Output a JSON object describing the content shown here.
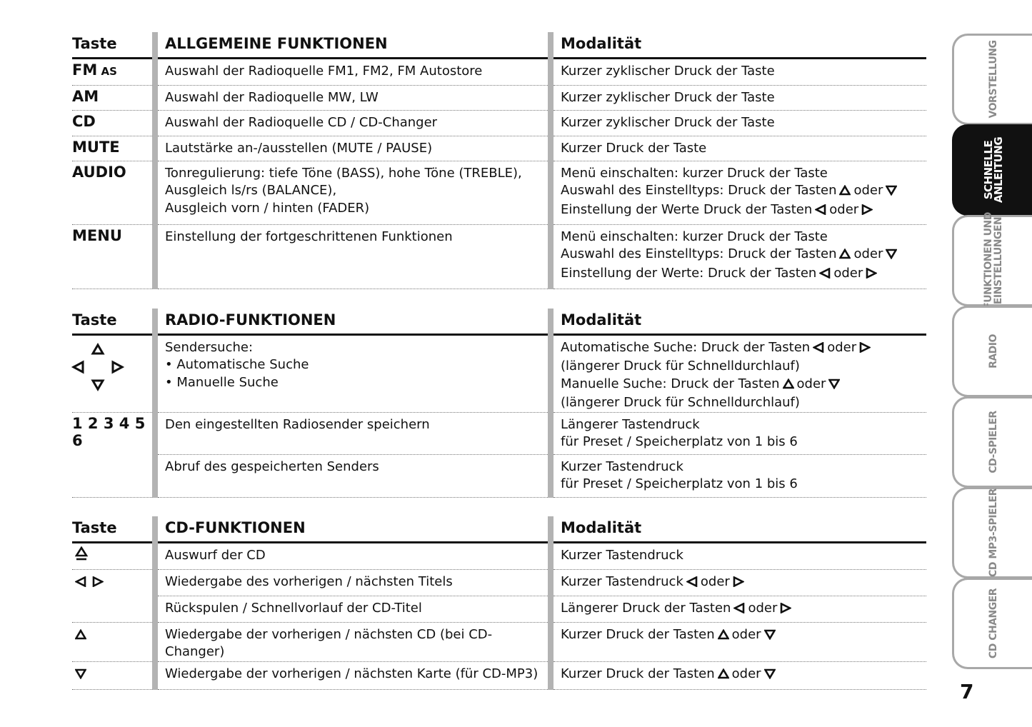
{
  "sections": [
    {
      "header": {
        "key": "Taste",
        "func": "ALLGEMEINE FUNKTIONEN",
        "mod": "Modalität"
      },
      "rows": [
        {
          "key": [
            {
              "t": "FM"
            },
            {
              "t": " AS",
              "small": true
            }
          ],
          "func": [
            [
              "Auswahl der Radioquelle FM1, FM2, FM Autostore"
            ]
          ],
          "mod": [
            [
              "Kurzer zyklischer Druck der Taste"
            ]
          ]
        },
        {
          "key": [
            {
              "t": "AM"
            }
          ],
          "func": [
            [
              "Auswahl der Radioquelle MW, LW"
            ]
          ],
          "mod": [
            [
              "Kurzer zyklischer Druck der Taste"
            ]
          ]
        },
        {
          "key": [
            {
              "t": "CD"
            }
          ],
          "func": [
            [
              "Auswahl der Radioquelle CD / CD-Changer"
            ]
          ],
          "mod": [
            [
              "Kurzer zyklischer Druck der Taste"
            ]
          ]
        },
        {
          "key": [
            {
              "t": "MUTE"
            }
          ],
          "func": [
            [
              "Lautstärke an-/ausstellen (MUTE / PAUSE)"
            ]
          ],
          "mod": [
            [
              "Kurzer Druck der Taste"
            ]
          ]
        },
        {
          "key": [
            {
              "t": "AUDIO"
            }
          ],
          "func": [
            [
              "Tonregulierung: tiefe Töne (BASS), hohe Töne (TREBLE),"
            ],
            [
              "Ausgleich ls/rs (BALANCE),"
            ],
            [
              "Ausgleich vorn / hinten (FADER)"
            ]
          ],
          "mod": [
            [
              "Menü einschalten: kurzer Druck der Taste"
            ],
            [
              "Auswahl des Einstelltyps: Druck der Tasten",
              {
                "icon": "up"
              },
              "oder",
              {
                "icon": "down"
              }
            ],
            [
              "Einstellung der Werte Druck der Tasten",
              {
                "icon": "left"
              },
              "oder",
              {
                "icon": "right"
              }
            ]
          ]
        },
        {
          "key": [
            {
              "t": "MENU"
            }
          ],
          "func": [
            [
              "Einstellung der fortgeschrittenen Funktionen"
            ]
          ],
          "mod": [
            [
              "Menü einschalten: kurzer Druck der Taste"
            ],
            [
              "Auswahl des Einstelltyps: Druck der Tasten",
              {
                "icon": "up"
              },
              "oder",
              {
                "icon": "down"
              }
            ],
            [
              "Einstellung der Werte: Druck der Tasten",
              {
                "icon": "left"
              },
              "oder",
              {
                "icon": "right"
              }
            ]
          ]
        }
      ]
    },
    {
      "header": {
        "key": "Taste",
        "func": "RADIO-FUNKTIONEN",
        "mod": "Modalität"
      },
      "rows": [
        {
          "key": [
            {
              "icon": "dpad"
            }
          ],
          "func": [
            [
              "Sendersuche:"
            ],
            [
              "• Automatische Suche"
            ],
            [
              "• Manuelle Suche"
            ]
          ],
          "mod": [
            [
              "Automatische Suche: Druck der Tasten",
              {
                "icon": "left"
              },
              "oder",
              {
                "icon": "right"
              }
            ],
            [
              "(längerer Druck für Schnelldurchlauf)"
            ],
            [
              "Manuelle Suche: Druck der Tasten",
              {
                "icon": "up"
              },
              "oder",
              {
                "icon": "down"
              }
            ],
            [
              "(längerer Druck für Schnelldurchlauf)"
            ]
          ]
        },
        {
          "key": [
            {
              "t": "1 2 3 4 5 6"
            }
          ],
          "span": 2,
          "func": [
            [
              "Den eingestellten Radiosender speichern"
            ]
          ],
          "mod": [
            [
              "Längerer Tastendruck"
            ],
            [
              "für Preset / Speicherplatz von 1 bis 6"
            ]
          ]
        },
        {
          "key": null,
          "func": [
            [
              "Abruf des gespeicherten Senders"
            ]
          ],
          "mod": [
            [
              "Kurzer Tastendruck"
            ],
            [
              "für Preset / Speicherplatz von 1 bis 6"
            ]
          ]
        }
      ]
    },
    {
      "header": {
        "key": "Taste",
        "func": "CD-FUNKTIONEN",
        "mod": "Modalität"
      },
      "rows": [
        {
          "key": [
            {
              "icon": "eject"
            }
          ],
          "func": [
            [
              "Auswurf der CD"
            ]
          ],
          "mod": [
            [
              "Kurzer Tastendruck"
            ]
          ]
        },
        {
          "key": [
            {
              "icon": "left"
            },
            {
              "icon": "right"
            }
          ],
          "span": 2,
          "func": [
            [
              "Wiedergabe des vorherigen / nächsten Titels"
            ]
          ],
          "mod": [
            [
              "Kurzer Tastendruck",
              {
                "icon": "left"
              },
              "oder",
              {
                "icon": "right"
              }
            ]
          ]
        },
        {
          "key": null,
          "func": [
            [
              "Rückspulen / Schnellvorlauf der CD-Titel"
            ]
          ],
          "mod": [
            [
              "Längerer Druck der Tasten",
              {
                "icon": "left"
              },
              "oder",
              {
                "icon": "right"
              }
            ]
          ]
        },
        {
          "key": [
            {
              "icon": "up"
            }
          ],
          "func": [
            [
              "Wiedergabe der vorherigen / nächsten CD (bei CD-Changer)"
            ]
          ],
          "mod": [
            [
              "Kurzer Druck der Tasten",
              {
                "icon": "up"
              },
              "oder",
              {
                "icon": "down"
              }
            ]
          ]
        },
        {
          "key": [
            {
              "icon": "down"
            }
          ],
          "func": [
            [
              "Wiedergabe der vorherigen / nächsten Karte (für CD-MP3)"
            ]
          ],
          "mod": [
            [
              "Kurzer Druck der Tasten",
              {
                "icon": "up"
              },
              "oder",
              {
                "icon": "down"
              }
            ]
          ]
        }
      ]
    }
  ],
  "tabs": [
    {
      "label": "VORSTELLUNG",
      "active": false
    },
    {
      "label": "SCHNELLE\nANLEITUNG",
      "active": true
    },
    {
      "label": "FUNKTIONEN UND\nEINSTELLUNGEN",
      "active": false
    },
    {
      "label": "RADIO",
      "active": false
    },
    {
      "label": "CD-SPIELER",
      "active": false
    },
    {
      "label": "CD MP3-SPIELER",
      "active": false
    },
    {
      "label": "CD CHANGER",
      "active": false
    }
  ],
  "page_number": "7"
}
